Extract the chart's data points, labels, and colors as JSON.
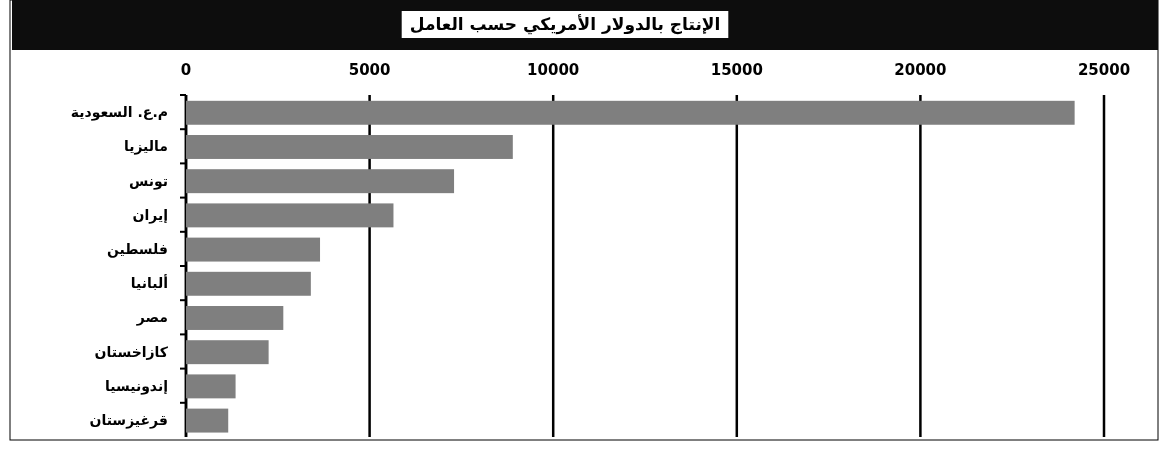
{
  "chart_data": {
    "type": "bar",
    "orientation": "horizontal",
    "title": "الإنتاج بالدولار الأمريكي حسب العامل",
    "categories": [
      "م.ع. السعودية",
      "ماليزيا",
      "تونس",
      "إيران",
      "فلسطين",
      "ألبانيا",
      "مصر",
      "كازاخستان",
      "إندونيسيا",
      "قرغيزستان"
    ],
    "values": [
      24200,
      8900,
      7300,
      5650,
      3650,
      3400,
      2650,
      2250,
      1350,
      1150
    ],
    "color": "#7f7f7f",
    "xlim": [
      0,
      25000
    ],
    "xticks": [
      0,
      5000,
      10000,
      15000,
      20000,
      25000
    ],
    "grid": "x"
  }
}
